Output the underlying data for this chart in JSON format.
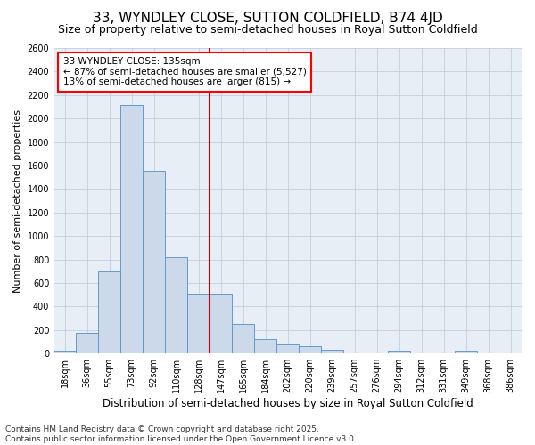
{
  "title": "33, WYNDLEY CLOSE, SUTTON COLDFIELD, B74 4JD",
  "subtitle": "Size of property relative to semi-detached houses in Royal Sutton Coldfield",
  "xlabel": "Distribution of semi-detached houses by size in Royal Sutton Coldfield",
  "ylabel": "Number of semi-detached properties",
  "footer": "Contains HM Land Registry data © Crown copyright and database right 2025.\nContains public sector information licensed under the Open Government Licence v3.0.",
  "categories": [
    "18sqm",
    "36sqm",
    "55sqm",
    "73sqm",
    "92sqm",
    "110sqm",
    "128sqm",
    "147sqm",
    "165sqm",
    "184sqm",
    "202sqm",
    "220sqm",
    "239sqm",
    "257sqm",
    "276sqm",
    "294sqm",
    "312sqm",
    "331sqm",
    "349sqm",
    "368sqm",
    "386sqm"
  ],
  "values": [
    20,
    175,
    700,
    2115,
    1555,
    820,
    510,
    510,
    250,
    125,
    75,
    60,
    30,
    0,
    0,
    20,
    0,
    0,
    20,
    0,
    0
  ],
  "bar_color": "#ccd9ea",
  "bar_edge_color": "#6699cc",
  "vline_color": "#cc0000",
  "vline_x": 7,
  "annotation_text": "33 WYNDLEY CLOSE: 135sqm\n← 87% of semi-detached houses are smaller (5,527)\n13% of semi-detached houses are larger (815) →",
  "ylim": [
    0,
    2600
  ],
  "yticks": [
    0,
    200,
    400,
    600,
    800,
    1000,
    1200,
    1400,
    1600,
    1800,
    2000,
    2200,
    2400,
    2600
  ],
  "bg_color": "#ffffff",
  "plot_bg_color": "#e8eef5",
  "grid_color": "#c0c8d8",
  "title_fontsize": 11,
  "subtitle_fontsize": 9,
  "xlabel_fontsize": 8.5,
  "ylabel_fontsize": 8,
  "tick_fontsize": 7,
  "annotation_fontsize": 7.5,
  "footer_fontsize": 6.5
}
